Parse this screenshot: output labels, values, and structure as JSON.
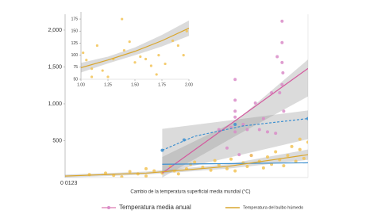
{
  "chart_data": [
    {
      "type": "scatter",
      "xlabel": "Cambio de la temperatura superficial media mundial (°C)",
      "x_tick_text": "0 0123",
      "xlim": [
        0,
        3
      ],
      "ylim": [
        0,
        2150
      ],
      "yticks": [
        500,
        {
          "value": 1000,
          "label": "1,000"
        },
        {
          "value": 1500,
          "label": "1,500"
        },
        {
          "value": 2000,
          "label": "2,000"
        }
      ],
      "series": [
        {
          "name": "Temperatura media anual",
          "color": "#d98cc8",
          "x": [
            2.68,
            2.68,
            2.68,
            2.69,
            2.68,
            2.65,
            2.7,
            2.62,
            2.1,
            2.1,
            2.1,
            2.1,
            2.1,
            2.05,
            2.2,
            2.25,
            2.35,
            2.4,
            2.5,
            2.55,
            2.6,
            2.45,
            1.9,
            2.0,
            2.3,
            2.15
          ],
          "values": [
            2120,
            1830,
            1560,
            1420,
            1260,
            1150,
            900,
            1640,
            1330,
            1050,
            900,
            820,
            620,
            680,
            720,
            650,
            1010,
            650,
            620,
            1150,
            600,
            800,
            650,
            400,
            300,
            310
          ]
        },
        {
          "name": "Temperatura del bulbo húmedo",
          "color": "#f2c356",
          "x": [
            0.3,
            0.5,
            0.6,
            0.8,
            0.9,
            1.0,
            1.1,
            1.2,
            1.3,
            1.35,
            1.4,
            1.5,
            1.55,
            1.6,
            1.7,
            1.8,
            1.85,
            1.9,
            2.0,
            2.05,
            2.1,
            2.2,
            2.25,
            2.3,
            2.4,
            2.45,
            2.5,
            2.55,
            2.6,
            2.65,
            2.7,
            2.75,
            2.8,
            2.85,
            2.9,
            2.95,
            3.0,
            2.9,
            1.0,
            0.7
          ],
          "values": [
            40,
            60,
            30,
            80,
            50,
            120,
            90,
            60,
            150,
            90,
            50,
            120,
            180,
            210,
            140,
            100,
            230,
            170,
            120,
            250,
            90,
            200,
            150,
            300,
            220,
            130,
            280,
            180,
            350,
            240,
            160,
            300,
            420,
            220,
            380,
            260,
            480,
            520,
            20,
            10
          ]
        },
        {
          "color": "#3c8fd0",
          "x": [
            1.2,
            1.47,
            2.1,
            3.0
          ],
          "values": [
            370,
            510,
            720,
            800
          ]
        }
      ],
      "bands": [
        {
          "x": [
            1.2,
            2.1,
            3.0
          ],
          "lower": [
            0,
            560,
            1100
          ],
          "upper": [
            280,
            760,
            1600
          ]
        },
        {
          "x": [
            1.2,
            3.0
          ],
          "lower": [
            60,
            520
          ],
          "upper": [
            660,
            910
          ]
        },
        {
          "x": [
            0,
            1,
            2,
            3
          ],
          "lower": [
            0,
            40,
            120,
            240
          ],
          "upper": [
            40,
            80,
            180,
            380
          ]
        }
      ],
      "fits": [
        {
          "color": "#d35a9e",
          "dashed": false,
          "x": [
            1.2,
            3.0
          ],
          "values": [
            60,
            1480
          ]
        },
        {
          "color": "#3c8fd0",
          "dashed": true,
          "x": [
            1.2,
            1.6,
            2.2,
            3.0
          ],
          "values": [
            370,
            560,
            700,
            800
          ]
        },
        {
          "color": "#3c8fd0",
          "dashed": false,
          "x": [
            1.2,
            3.0
          ],
          "values": [
            180,
            200
          ]
        },
        {
          "color": "#d9a62e",
          "dashed": false,
          "x": [
            0,
            1,
            2,
            3
          ],
          "values": [
            20,
            60,
            150,
            310
          ]
        }
      ]
    },
    {
      "type": "scatter",
      "xlim": [
        1,
        2
      ],
      "ylim": [
        50,
        180
      ],
      "xticks": [
        {
          "value": 1,
          "label": "1.00"
        },
        {
          "value": 1.25,
          "label": "1.25"
        },
        {
          "value": 1.5,
          "label": "1.50"
        },
        {
          "value": 1.75,
          "label": "1.75"
        },
        {
          "value": 2,
          "label": "2.00"
        }
      ],
      "yticks": [
        50,
        75,
        100,
        125,
        150,
        175
      ],
      "series": [
        {
          "color": "#f2c356",
          "x": [
            1.02,
            1.05,
            1.1,
            1.15,
            1.2,
            1.25,
            1.3,
            1.38,
            1.4,
            1.45,
            1.5,
            1.55,
            1.6,
            1.65,
            1.72,
            1.78,
            1.85,
            1.9,
            1.95,
            1.98,
            1.1,
            1.7
          ],
          "values": [
            105,
            90,
            72,
            120,
            68,
            55,
            92,
            175,
            110,
            128,
            85,
            97,
            92,
            78,
            100,
            82,
            130,
            120,
            100,
            150,
            55,
            60
          ]
        }
      ],
      "bands": [
        {
          "x": [
            1,
            1.25,
            1.5,
            1.75,
            2
          ],
          "lower": [
            64,
            83,
            100,
            118,
            140
          ],
          "upper": [
            84,
            97,
            116,
            142,
            172
          ]
        }
      ],
      "fits": [
        {
          "color": "#d9a62e",
          "dashed": false,
          "x": [
            1,
            1.25,
            1.5,
            1.75,
            2
          ],
          "values": [
            74,
            90,
            108,
            130,
            156
          ]
        }
      ]
    }
  ]
}
